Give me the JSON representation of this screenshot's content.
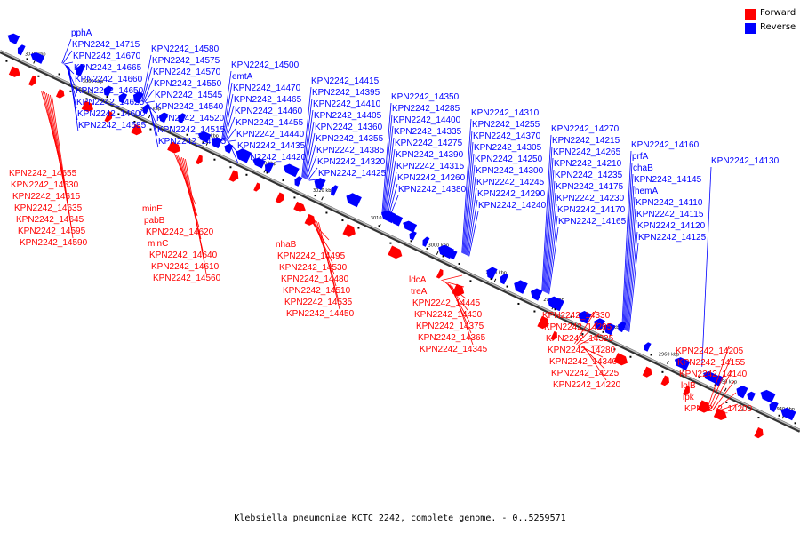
{
  "caption": "Klebsiella pneumoniae KCTC 2242, complete genome. - 0..5259571",
  "legend": [
    {
      "name": "Forward",
      "color": "#ff0000"
    },
    {
      "name": "Reverse",
      "color": "#0000ff"
    }
  ],
  "colors": {
    "forward": "#ff0000",
    "reverse": "#0000ff",
    "backbone": "#8a8a8a",
    "tick": "#000000"
  },
  "ticks": [
    "3070 kbp",
    "3060 kbp",
    "3050 kbp",
    "3040 kbp",
    "3030 kbp",
    "3020 kbp",
    "3010 kbp",
    "3000 kbp",
    "2990 kbp",
    "2980 kbp",
    "2970 kbp",
    "2960 kbp",
    "2950 kbp",
    "2940 kbp"
  ],
  "reverse_labels": [
    "pphA",
    "KPN2242_14715",
    "KPN2242_14670",
    "KPN2242_14665",
    "KPN2242_14660",
    "KPN2242_14650",
    "KPN2242_14625",
    "KPN2242_14600",
    "KPN2242_14585",
    "KPN2242_14580",
    "KPN2242_14575",
    "KPN2242_14570",
    "KPN2242_14550",
    "KPN2242_14545",
    "KPN2242_14540",
    "KPN2242_14520",
    "KPN2242_14515",
    "KPN2242_14505",
    "KPN2242_14500",
    "emtA",
    "KPN2242_14470",
    "KPN2242_14465",
    "KPN2242_14460",
    "KPN2242_14455",
    "KPN2242_14440",
    "KPN2242_14435",
    "KPN2242_14420",
    "KPN2242_14415",
    "KPN2242_14395",
    "KPN2242_14410",
    "KPN2242_14405",
    "KPN2242_14360",
    "KPN2242_14355",
    "KPN2242_14385",
    "KPN2242_14320",
    "KPN2242_14425",
    "KPN2242_14350",
    "KPN2242_14285",
    "KPN2242_14400",
    "KPN2242_14335",
    "KPN2242_14275",
    "KPN2242_14390",
    "KPN2242_14315",
    "KPN2242_14260",
    "KPN2242_14380",
    "KPN2242_14310",
    "KPN2242_14255",
    "KPN2242_14370",
    "KPN2242_14305",
    "KPN2242_14250",
    "KPN2242_14300",
    "KPN2242_14245",
    "KPN2242_14290",
    "KPN2242_14240",
    "KPN2242_14270",
    "KPN2242_14215",
    "KPN2242_14265",
    "KPN2242_14210",
    "KPN2242_14235",
    "KPN2242_14175",
    "KPN2242_14230",
    "KPN2242_14170",
    "KPN2242_14165",
    "KPN2242_14160",
    "prfA",
    "chaB",
    "KPN2242_14145",
    "hemA",
    "KPN2242_14110",
    "KPN2242_14115",
    "KPN2242_14120",
    "KPN2242_14125",
    "KPN2242_14130"
  ],
  "forward_labels": [
    "KPN2242_14655",
    "KPN2242_14630",
    "KPN2242_14615",
    "KPN2242_14635",
    "KPN2242_14645",
    "KPN2242_14595",
    "KPN2242_14590",
    "minE",
    "pabB",
    "KPN2242_14620",
    "minC",
    "KPN2242_14640",
    "KPN2242_14610",
    "KPN2242_14560",
    "nhaB",
    "KPN2242_14495",
    "KPN2242_14530",
    "KPN2242_14480",
    "KPN2242_14510",
    "KPN2242_14535",
    "KPN2242_14450",
    "ldcA",
    "treA",
    "KPN2242_14445",
    "KPN2242_14430",
    "KPN2242_14375",
    "KPN2242_14365",
    "KPN2242_14345",
    "KPN2242_14330",
    "KPN2242_14295",
    "KPN2242_14325",
    "KPN2242_14280",
    "KPN2242_14340",
    "KPN2242_14225",
    "KPN2242_14220",
    "KPN2242_14205",
    "KPN2242_14155",
    "KPN2242_14140",
    "lolB",
    "ipk",
    "KPN2242_14200"
  ]
}
